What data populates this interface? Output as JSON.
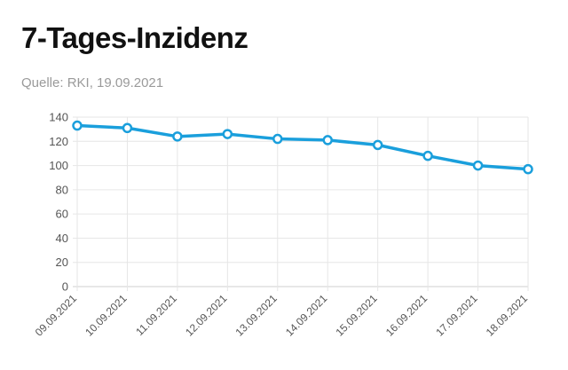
{
  "header": {
    "title": "7-Tages-Inzidenz",
    "source": "Quelle: RKI, 19.09.2021"
  },
  "colors": {
    "line": "#1a9fdc",
    "grid": "#e6e6e6",
    "axis_text": "#555555"
  },
  "chart_data": {
    "type": "line",
    "title": "7-Tages-Inzidenz",
    "xlabel": "",
    "ylabel": "",
    "categories": [
      "09.09.2021",
      "10.09.2021",
      "11.09.2021",
      "12.09.2021",
      "13.09.2021",
      "14.09.2021",
      "15.09.2021",
      "16.09.2021",
      "17.09.2021",
      "18.09.2021"
    ],
    "series": [
      {
        "values": [
          133,
          131,
          124,
          126,
          122,
          121,
          117,
          108,
          100,
          97
        ]
      }
    ],
    "ylim": [
      0,
      140
    ],
    "yticks": [
      0,
      20,
      40,
      60,
      80,
      100,
      120,
      140
    ],
    "grid": true,
    "legend": "none"
  }
}
